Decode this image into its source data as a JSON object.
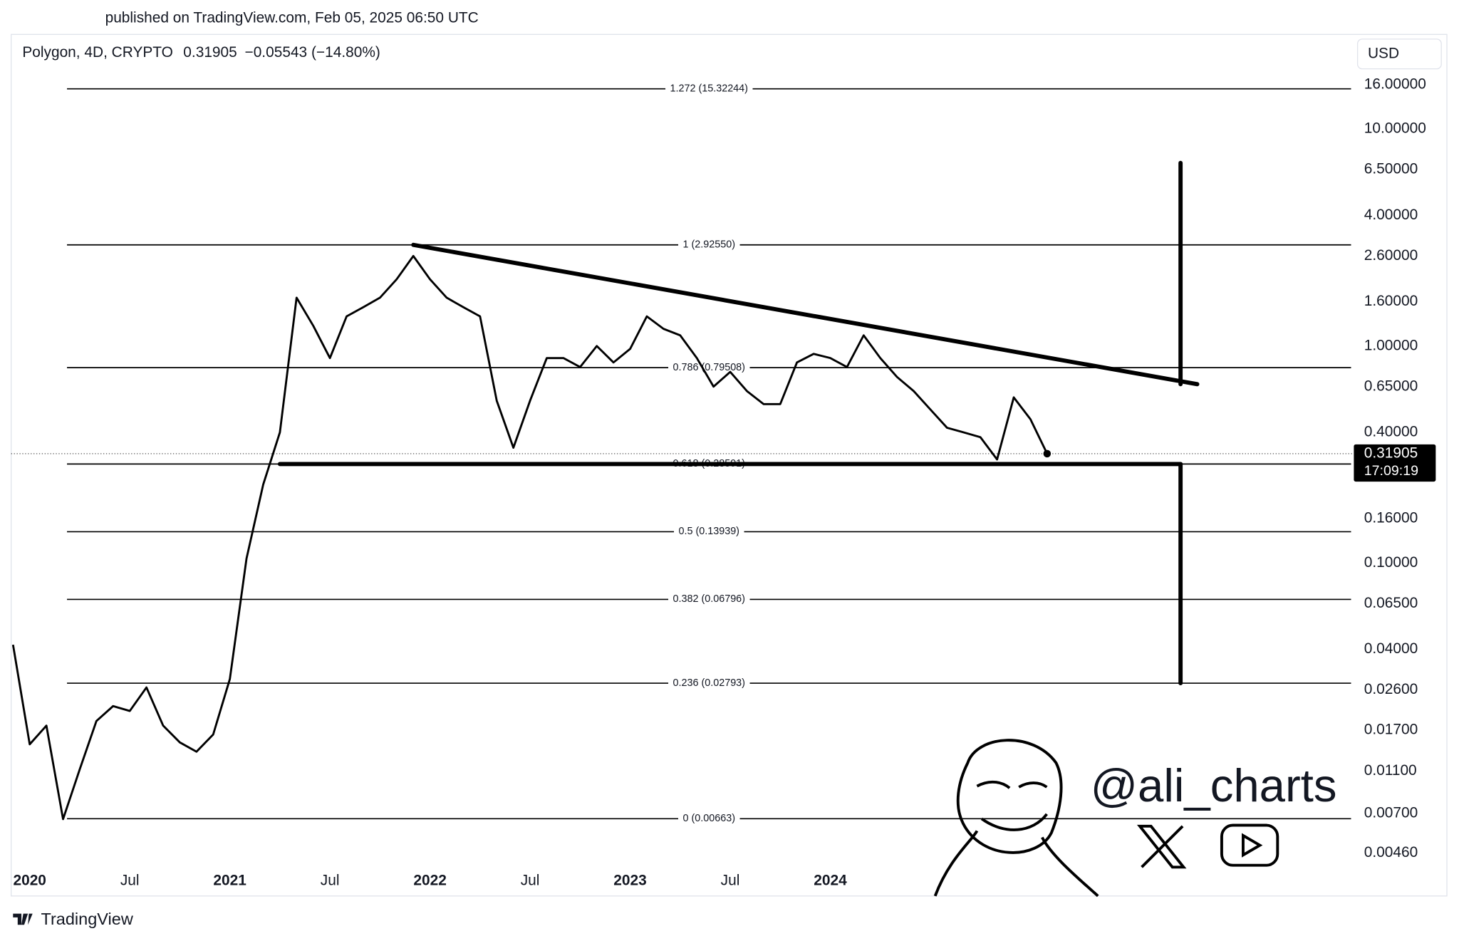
{
  "chart_data": {
    "type": "line",
    "published": "published on TradingView.com, Feb 05, 2025 06:50 UTC",
    "symbol": "Polygon, 4D, CRYPTO",
    "last": 0.31905,
    "change": "−0.05543 (−14.80%)",
    "currency": "USD",
    "countdown": "17:09:19",
    "brand": "TradingView",
    "watermark": "@ali_charts",
    "log_scale": true,
    "xlim": [
      "2019-12",
      "2026-08"
    ],
    "ylim": [
      0.00385,
      26.5
    ],
    "xticks": [
      {
        "value": "2020-01",
        "label": "2020"
      },
      {
        "value": "2020-07",
        "label": "Jul"
      },
      {
        "value": "2021-01",
        "label": "2021"
      },
      {
        "value": "2021-07",
        "label": "Jul"
      },
      {
        "value": "2022-01",
        "label": "2022"
      },
      {
        "value": "2022-07",
        "label": "Jul"
      },
      {
        "value": "2023-01",
        "label": "2023"
      },
      {
        "value": "2023-07",
        "label": "Jul"
      },
      {
        "value": "2024-01",
        "label": "2024"
      }
    ],
    "yticks": [
      {
        "value": 16,
        "label": "16.00000"
      },
      {
        "value": 10,
        "label": "10.00000"
      },
      {
        "value": 6.5,
        "label": "6.50000"
      },
      {
        "value": 4,
        "label": "4.00000"
      },
      {
        "value": 2.6,
        "label": "2.60000"
      },
      {
        "value": 1.6,
        "label": "1.60000"
      },
      {
        "value": 1,
        "label": "1.00000"
      },
      {
        "value": 0.65,
        "label": "0.65000"
      },
      {
        "value": 0.4,
        "label": "0.40000"
      },
      {
        "value": 0.16,
        "label": "0.16000"
      },
      {
        "value": 0.1,
        "label": "0.10000"
      },
      {
        "value": 0.065,
        "label": "0.06500"
      },
      {
        "value": 0.04,
        "label": "0.04000"
      },
      {
        "value": 0.026,
        "label": "0.02600"
      },
      {
        "value": 0.017,
        "label": "0.01700"
      },
      {
        "value": 0.011,
        "label": "0.01100"
      },
      {
        "value": 0.007,
        "label": "0.00700"
      },
      {
        "value": 0.0046,
        "label": "0.00460"
      }
    ],
    "x": [
      "2019-12",
      "2020-01",
      "2020-02",
      "2020-03",
      "2020-04",
      "2020-05",
      "2020-06",
      "2020-07",
      "2020-08",
      "2020-09",
      "2020-10",
      "2020-11",
      "2020-12",
      "2021-01",
      "2021-02",
      "2021-03",
      "2021-04",
      "2021-05",
      "2021-06",
      "2021-07",
      "2021-08",
      "2021-09",
      "2021-10",
      "2021-11",
      "2021-12",
      "2022-01",
      "2022-02",
      "2022-03",
      "2022-04",
      "2022-05",
      "2022-06",
      "2022-07",
      "2022-08",
      "2022-09",
      "2022-10",
      "2022-11",
      "2022-12",
      "2023-01",
      "2023-02",
      "2023-03",
      "2023-04",
      "2023-05",
      "2023-06",
      "2023-07",
      "2023-08",
      "2023-09",
      "2023-10",
      "2023-11",
      "2023-12",
      "2024-01",
      "2024-02",
      "2024-03",
      "2024-04",
      "2024-05",
      "2024-06",
      "2024-07",
      "2024-08",
      "2024-09",
      "2024-10",
      "2024-11",
      "2024-12",
      "2025-01",
      "2025-02"
    ],
    "series": [
      {
        "color": "#000000",
        "values": [
          0.042,
          0.0146,
          0.0178,
          0.0066,
          0.0112,
          0.0187,
          0.0219,
          0.0208,
          0.0267,
          0.0178,
          0.0149,
          0.0135,
          0.0162,
          0.0292,
          0.105,
          0.23,
          0.4,
          1.67,
          1.24,
          0.88,
          1.37,
          1.51,
          1.67,
          2.03,
          2.6,
          2.03,
          1.67,
          1.51,
          1.37,
          0.56,
          0.34,
          0.56,
          0.88,
          0.88,
          0.8,
          1.0,
          0.84,
          0.97,
          1.37,
          1.2,
          1.12,
          0.88,
          0.65,
          0.76,
          0.62,
          0.54,
          0.54,
          0.84,
          0.92,
          0.88,
          0.8,
          1.12,
          0.88,
          0.72,
          0.62,
          0.51,
          0.42,
          0.4,
          0.38,
          0.3,
          0.58,
          0.46,
          0.31905
        ]
      }
    ],
    "fib_levels": [
      {
        "value": 15.32244,
        "label": "1.272 (15.32244)"
      },
      {
        "value": 2.9255,
        "label": "1 (2.92550)"
      },
      {
        "value": 0.79508,
        "label": "0.786 (0.79508)"
      },
      {
        "value": 0.28591,
        "label": "0.618 (0.28591)"
      },
      {
        "value": 0.13939,
        "label": "0.5 (0.13939)"
      },
      {
        "value": 0.06796,
        "label": "0.382 (0.06796)"
      },
      {
        "value": 0.02793,
        "label": "0.236 (0.02793)"
      },
      {
        "value": 0.00663,
        "label": "0 (0.00663)"
      }
    ],
    "trend_lines": [
      {
        "x": [
          "2021-12",
          "2025-11"
        ],
        "y": [
          2.9255,
          0.667
        ]
      },
      {
        "x": [
          "2021-04",
          "2025-10"
        ],
        "y": [
          0.28591,
          0.28591
        ]
      },
      {
        "x": [
          "2025-10",
          "2025-10"
        ],
        "y": [
          0.667,
          6.98
        ]
      },
      {
        "x": [
          "2025-10",
          "2025-10"
        ],
        "y": [
          0.28591,
          0.02793
        ]
      }
    ]
  }
}
